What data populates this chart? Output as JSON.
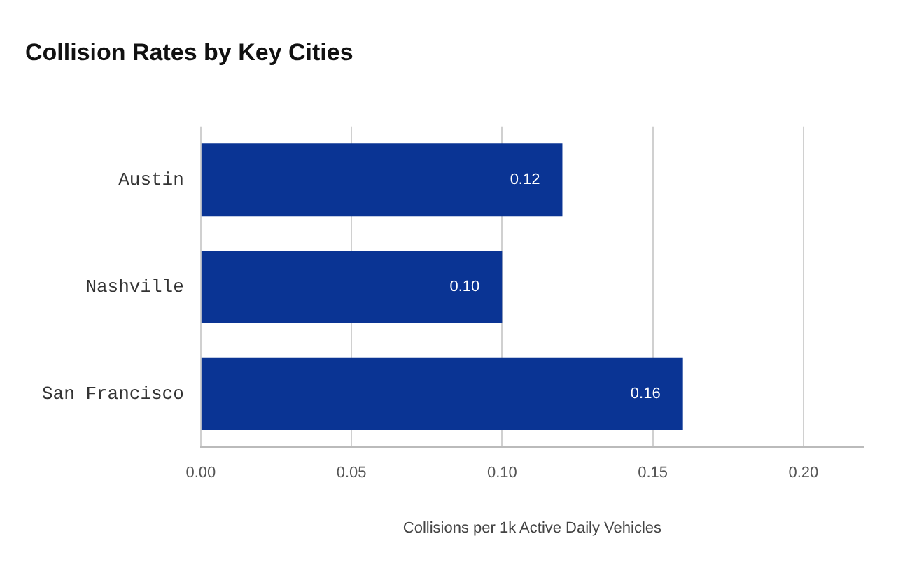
{
  "chart_data": {
    "type": "bar",
    "orientation": "horizontal",
    "title": "Collision Rates by Key Cities",
    "xlabel": "Collisions per 1k Active Daily Vehicles",
    "categories": [
      "Austin",
      "Nashville",
      "San Francisco"
    ],
    "values": [
      0.12,
      0.1,
      0.16
    ],
    "value_labels": [
      "0.12",
      "0.10",
      "0.16"
    ],
    "color": "#0a3494",
    "xlim": [
      0,
      0.22
    ],
    "xticks": [
      {
        "value": 0,
        "label": "0.00"
      },
      {
        "value": 0.05,
        "label": "0.05"
      },
      {
        "value": 0.1,
        "label": "0.10"
      },
      {
        "value": 0.15,
        "label": "0.15"
      },
      {
        "value": 0.2,
        "label": "0.20"
      }
    ],
    "grid": "x",
    "legend": false
  }
}
